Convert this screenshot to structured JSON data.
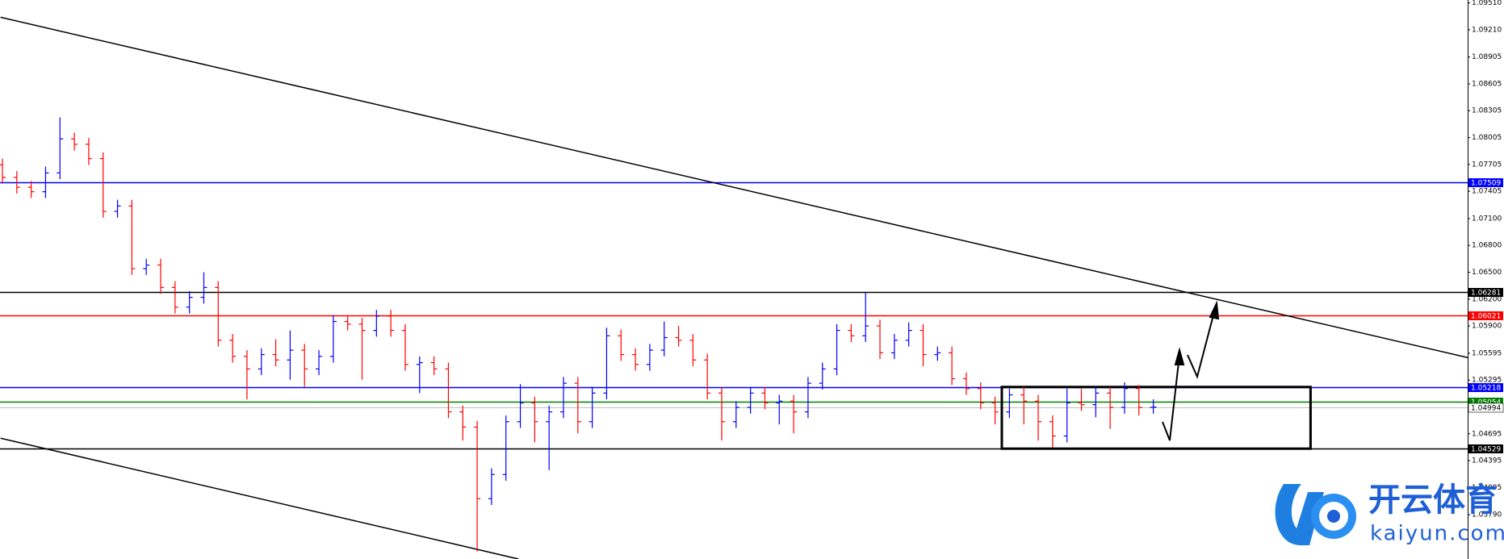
{
  "chart_data": {
    "type": "ohlc",
    "ylim": [
      1.03296,
      1.09542
    ],
    "yticks": [
      {
        "value": 1.0951,
        "label": "1.09510"
      },
      {
        "value": 1.0921,
        "label": "1.09210"
      },
      1.08905,
      1.08605,
      1.08305,
      1.08005,
      1.07705,
      1.07405,
      {
        "value": 1.071,
        "label": "1.07100"
      },
      {
        "value": 1.068,
        "label": "1.06800"
      },
      {
        "value": 1.065,
        "label": "1.06500"
      },
      {
        "value": 1.062,
        "label": "1.06200"
      },
      {
        "value": 1.059,
        "label": "1.05900"
      },
      1.05595,
      1.05295,
      1.04695,
      1.04395,
      1.04095,
      {
        "value": 1.0379,
        "label": "1.03790"
      }
    ],
    "up_color": "#0000ff",
    "down_color": "#ff0000",
    "open": [
      1.077,
      1.0756,
      1.0745,
      1.074,
      1.0761,
      1.0799,
      1.0793,
      1.0777,
      1.0718,
      1.0724,
      1.0654,
      1.0658,
      1.0633,
      1.0611,
      1.0622,
      1.0633,
      1.0574,
      1.0556,
      1.0542,
      1.0558,
      1.0552,
      1.0563,
      1.0542,
      1.0556,
      1.0595,
      1.0592,
      1.0585,
      1.0601,
      1.0585,
      1.0547,
      1.0549,
      1.0542,
      1.0494,
      1.0477,
      1.0397,
      1.0424,
      1.0483,
      1.0504,
      1.0483,
      1.0494,
      1.0526,
      1.0483,
      1.0515,
      1.0579,
      1.0558,
      1.0547,
      1.0563,
      1.0577,
      1.0574,
      1.0552,
      1.0515,
      1.0483,
      1.0499,
      1.0515,
      1.0504,
      1.0506,
      1.0494,
      1.0526,
      1.0542,
      1.0585,
      1.0579,
      1.059,
      1.056,
      1.0574,
      1.0585,
      1.0558,
      1.056,
      1.0531,
      1.052,
      1.0504,
      1.0494,
      1.0513,
      1.0506,
      1.0483,
      1.0467,
      1.0504,
      1.0502,
      1.0515,
      1.0499,
      1.052,
      1.0499
    ],
    "high": [
      1.0777,
      1.0763,
      1.0752,
      1.0768,
      1.0823,
      1.0806,
      1.08,
      1.0784,
      1.0731,
      1.0731,
      1.0665,
      1.0665,
      1.064,
      1.0629,
      1.065,
      1.064,
      1.0581,
      1.0563,
      1.0565,
      1.0575,
      1.0585,
      1.057,
      1.0563,
      1.0602,
      1.0602,
      1.0599,
      1.0608,
      1.0608,
      1.0592,
      1.0556,
      1.0556,
      1.0549,
      1.0501,
      1.0484,
      1.0431,
      1.049,
      1.0525,
      1.0511,
      1.0501,
      1.0533,
      1.0533,
      1.0522,
      1.0588,
      1.0586,
      1.0565,
      1.057,
      1.0595,
      1.059,
      1.0581,
      1.0559,
      1.0522,
      1.0506,
      1.0522,
      1.0522,
      1.0513,
      1.0513,
      1.0533,
      1.0549,
      1.0592,
      1.0592,
      1.0627,
      1.0597,
      1.0581,
      1.0594,
      1.0592,
      1.0567,
      1.0567,
      1.0538,
      1.0527,
      1.0511,
      1.052,
      1.0522,
      1.0513,
      1.049,
      1.052,
      1.052,
      1.0522,
      1.0522,
      1.0527,
      1.0524,
      1.0508
    ],
    "low": [
      1.0749,
      1.0738,
      1.0733,
      1.0733,
      1.0754,
      1.0786,
      1.077,
      1.0711,
      1.0711,
      1.0647,
      1.0647,
      1.0626,
      1.0604,
      1.0604,
      1.0615,
      1.0567,
      1.0549,
      1.0508,
      1.0535,
      1.0545,
      1.053,
      1.0522,
      1.0535,
      1.0549,
      1.0585,
      1.053,
      1.0578,
      1.0578,
      1.054,
      1.0515,
      1.0535,
      1.0487,
      1.0462,
      1.0338,
      1.039,
      1.0417,
      1.0476,
      1.046,
      1.0429,
      1.0487,
      1.047,
      1.0476,
      1.0508,
      1.0551,
      1.054,
      1.054,
      1.0556,
      1.0567,
      1.0545,
      1.0508,
      1.0462,
      1.0476,
      1.0492,
      1.0497,
      1.048,
      1.047,
      1.0487,
      1.0519,
      1.0535,
      1.0572,
      1.0572,
      1.0553,
      1.0553,
      1.0567,
      1.0545,
      1.0551,
      1.0524,
      1.0513,
      1.0497,
      1.048,
      1.0487,
      1.048,
      1.0462,
      1.0454,
      1.046,
      1.0495,
      1.0488,
      1.0475,
      1.0492,
      1.049,
      1.0492
    ],
    "close": [
      1.0756,
      1.0745,
      1.074,
      1.0761,
      1.0799,
      1.0793,
      1.0777,
      1.0718,
      1.0724,
      1.0654,
      1.0658,
      1.0633,
      1.0611,
      1.0622,
      1.0633,
      1.0574,
      1.0556,
      1.0542,
      1.0558,
      1.0552,
      1.0563,
      1.0542,
      1.0556,
      1.0595,
      1.0592,
      1.0585,
      1.0601,
      1.0585,
      1.0547,
      1.0549,
      1.0542,
      1.0494,
      1.0477,
      1.0397,
      1.0424,
      1.0483,
      1.0504,
      1.0483,
      1.0494,
      1.0526,
      1.0483,
      1.0515,
      1.0579,
      1.0558,
      1.0547,
      1.0563,
      1.0577,
      1.0574,
      1.0552,
      1.0515,
      1.0483,
      1.0499,
      1.0515,
      1.0504,
      1.0506,
      1.0494,
      1.0526,
      1.0542,
      1.0585,
      1.0579,
      1.059,
      1.056,
      1.0574,
      1.0585,
      1.0558,
      1.056,
      1.0531,
      1.052,
      1.0504,
      1.0494,
      1.0513,
      1.0506,
      1.0483,
      1.0467,
      1.0504,
      1.0502,
      1.0515,
      1.0499,
      1.052,
      1.0499,
      1.04994
    ],
    "levels": [
      {
        "value": 1.07509,
        "color": "#0000ff"
      },
      {
        "value": 1.06281,
        "color": "#000000"
      },
      {
        "value": 1.06021,
        "color": "#ff0000"
      },
      {
        "value": 1.05218,
        "color": "#0000ff"
      },
      {
        "value": 1.05054,
        "color": "#008000"
      },
      {
        "value": 1.04994,
        "color": "#c0c0c0"
      },
      {
        "value": 1.04529,
        "color": "#000000"
      }
    ],
    "trendlines": [
      {
        "x": [
          -0.13,
          101.87
        ],
        "y": [
          1.09349,
          1.05546
        ]
      },
      {
        "x": [
          -0.13,
          35.87
        ],
        "y": [
          1.04646,
          1.03296
        ]
      }
    ],
    "box": {
      "x": [
        69.47,
        90.93
      ],
      "y": [
        1.05218,
        1.04529
      ]
    }
  },
  "watermark": {
    "title": "开云体育",
    "url": "kaiyun.com"
  }
}
